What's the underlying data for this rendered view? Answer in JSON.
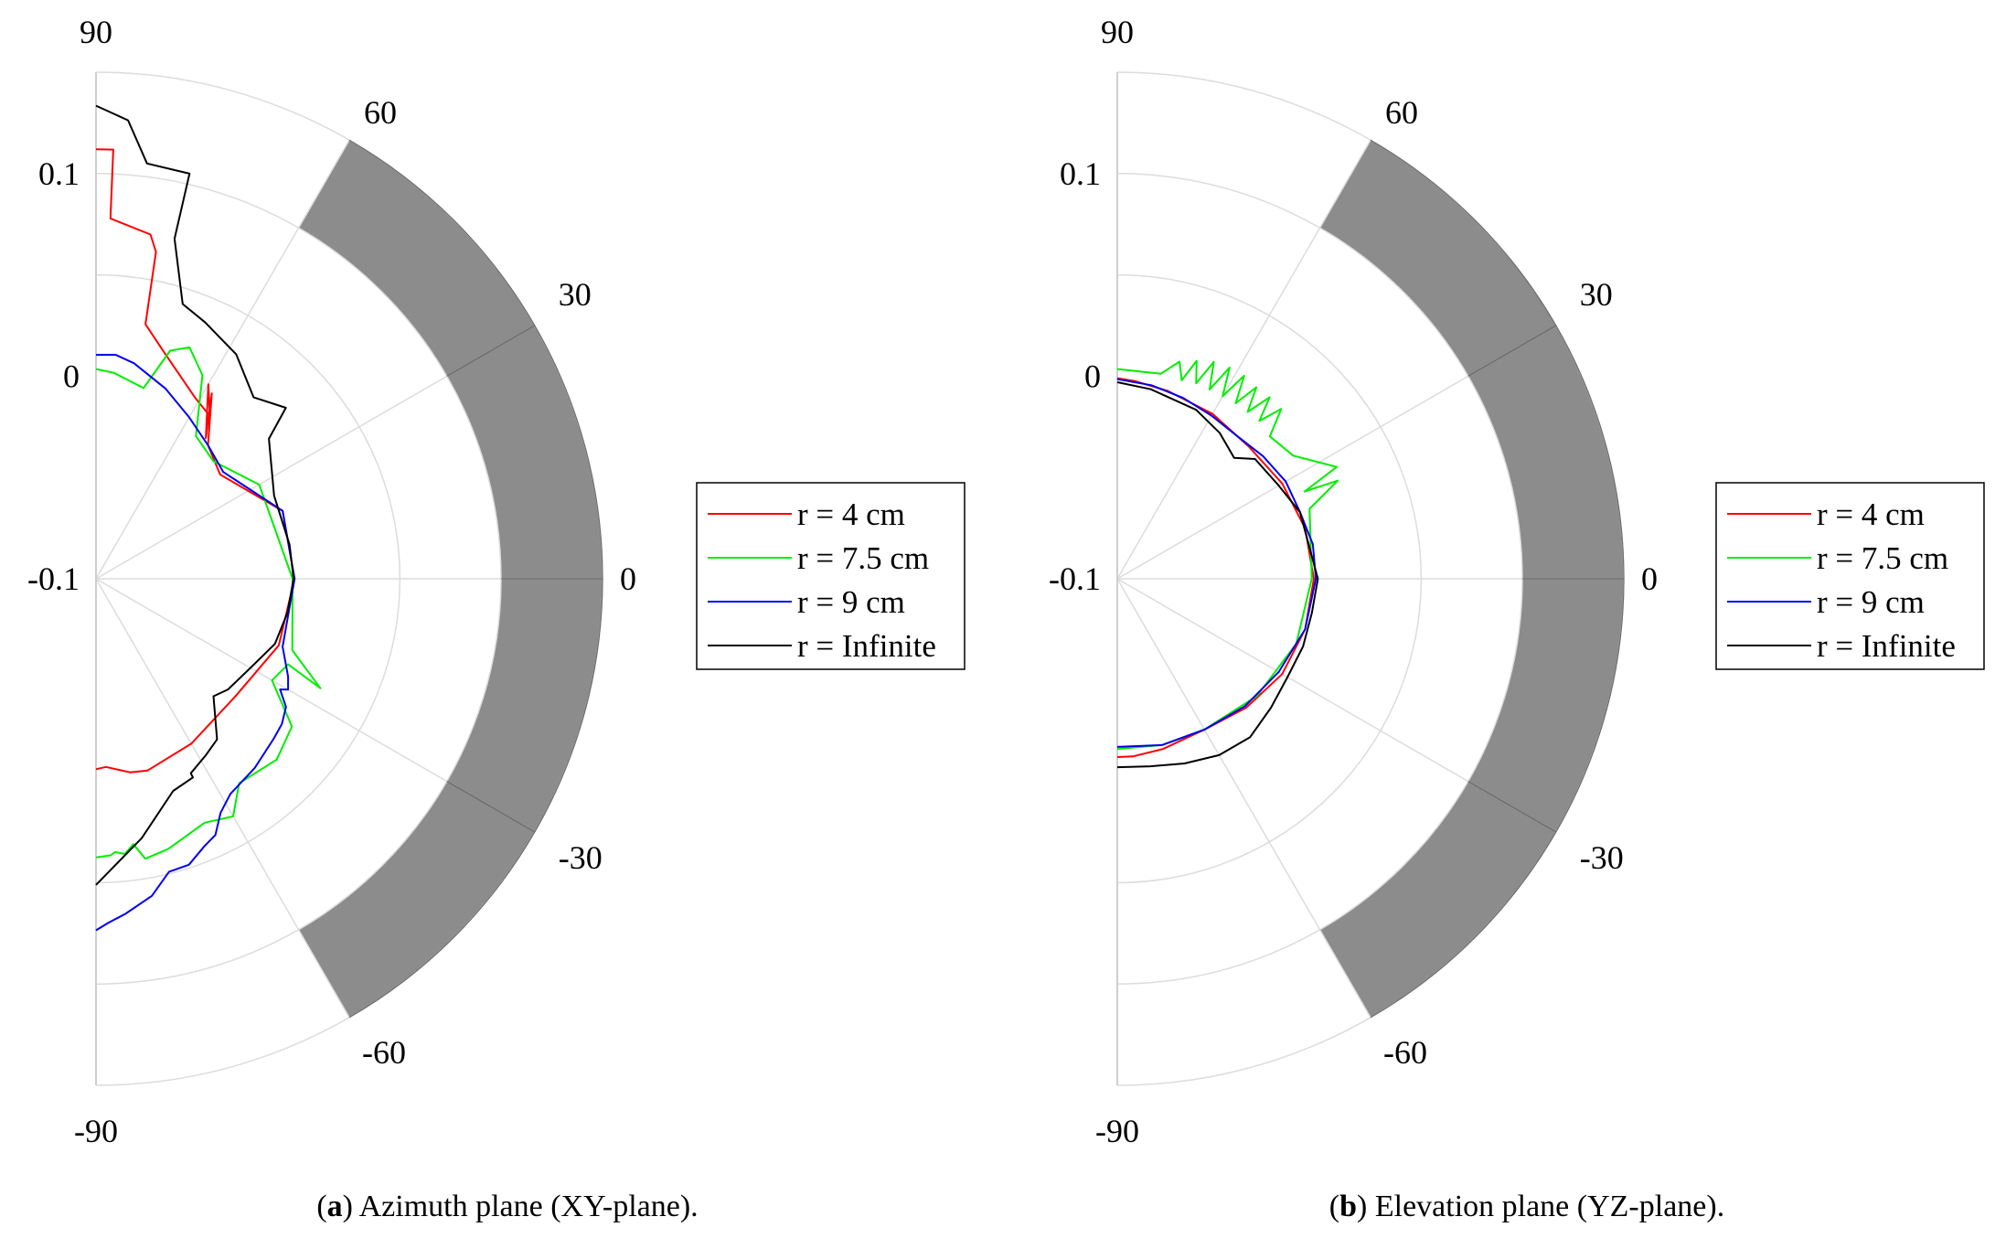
{
  "chart_data": [
    {
      "type": "polar-line",
      "caption_letter": "a",
      "caption_text": " Azimuth plane (XY-plane).",
      "theta_ticks": [
        "90",
        "60",
        "30",
        "0",
        "-30",
        "-60",
        "-90"
      ],
      "r_ticks": [
        "0.1",
        "0",
        "-0.1"
      ],
      "r_range": [
        -0.1,
        0.15
      ],
      "theta_range": [
        -90,
        90
      ],
      "grid": true,
      "shaded_band": {
        "theta": [
          -60,
          60
        ],
        "r": [
          0.1,
          0.15
        ],
        "color": "#8c8c8c"
      },
      "legend": {
        "placement": "right"
      },
      "series": [
        {
          "name": "r = 4 cm",
          "color": "#ff0000",
          "points": [
            [
              90,
              0.112
            ],
            [
              87.7,
              0.112
            ],
            [
              87.7,
              0.078
            ],
            [
              81,
              0.072
            ],
            [
              79.6,
              0.064
            ],
            [
              79,
              0.028
            ],
            [
              73.2,
              0.0166
            ],
            [
              61.3,
              0.0019
            ],
            [
              55,
              -0.002
            ],
            [
              60,
              0.0109
            ],
            [
              52,
              -0.012
            ],
            [
              58,
              0.0079
            ],
            [
              50,
              -0.014
            ],
            [
              40,
              -0.02
            ],
            [
              20,
              -0.002
            ],
            [
              0,
              -0.002
            ],
            [
              -20,
              -0.004
            ],
            [
              -40,
              -0.01
            ],
            [
              -60,
              -0.006
            ],
            [
              -75,
              -0.002
            ],
            [
              -80,
              -0.003
            ],
            [
              -87,
              -0.007
            ],
            [
              -90,
              -0.006
            ]
          ]
        },
        {
          "name": "r = 7.5 cm",
          "color": "#00ee00",
          "points": [
            [
              90,
              0.0035
            ],
            [
              85,
              0.002
            ],
            [
              76,
              -0.003
            ],
            [
              72,
              0.0184
            ],
            [
              68,
              0.0232
            ],
            [
              62.4,
              0.0134
            ],
            [
              55,
              -0.014
            ],
            [
              45,
              -0.018
            ],
            [
              30,
              -0.007
            ],
            [
              0,
              -0.003
            ],
            [
              -20,
              0.0031
            ],
            [
              -26,
              0.0232
            ],
            [
              -24,
              0.0038
            ],
            [
              -30,
              0.0003
            ],
            [
              -37,
              0.0211
            ],
            [
              -45,
              0.0262
            ],
            [
              -55,
              0.0232
            ],
            [
              -60,
              0.0354
            ],
            [
              -66,
              0.0318
            ],
            [
              -75,
              0.038
            ],
            [
              -80,
              0.0403
            ],
            [
              -82,
              0.0323
            ],
            [
              -84,
              0.0366
            ],
            [
              -86,
              0.0352
            ],
            [
              -87,
              0.0367
            ],
            [
              -90,
              0.0375
            ]
          ]
        },
        {
          "name": "r = 9 cm",
          "color": "#0000ee",
          "points": [
            [
              90,
              0.0105
            ],
            [
              85,
              0.011
            ],
            [
              80,
              0.008
            ],
            [
              70,
              0
            ],
            [
              60,
              -0.008
            ],
            [
              50,
              -0.014
            ],
            [
              40,
              -0.018
            ],
            [
              20,
              -0.002
            ],
            [
              0,
              -0.002
            ],
            [
              -20,
              -0.002
            ],
            [
              -27,
              0.0064
            ],
            [
              -30,
              0.0095
            ],
            [
              -31,
              0.006
            ],
            [
              -34,
              0.0131
            ],
            [
              -38,
              0.0164
            ],
            [
              -42,
              0.018
            ],
            [
              -50,
              0.0219
            ],
            [
              -58,
              0.0252
            ],
            [
              -62,
              0.0309
            ],
            [
              -65,
              0.0395
            ],
            [
              -68,
              0.0425
            ],
            [
              -72,
              0.0484
            ],
            [
              -76,
              0.049
            ],
            [
              -80,
              0.0589
            ],
            [
              -85,
              0.066
            ],
            [
              -88,
              0.07
            ],
            [
              -90,
              0.0735
            ]
          ]
        },
        {
          "name": "r = Infinite",
          "color": "#000000",
          "points": [
            [
              90,
              0.1335
            ],
            [
              86,
              0.1268
            ],
            [
              83,
              0.1065
            ],
            [
              77,
              0.1052
            ],
            [
              77,
              0.0723
            ],
            [
              72.5,
              0.0422
            ],
            [
              67,
              0.0376
            ],
            [
              58,
              0.0306
            ],
            [
              49,
              0.0186
            ],
            [
              42,
              0.0261
            ],
            [
              39,
              0.0098
            ],
            [
              25,
              -0.003
            ],
            [
              10,
              -0.003
            ],
            [
              0,
              -0.0025
            ],
            [
              -10,
              -0.004
            ],
            [
              -20,
              -0.006
            ],
            [
              -30,
              -0.012
            ],
            [
              -40,
              -0.015
            ],
            [
              -45,
              -0.018
            ],
            [
              -53,
              -0.0007
            ],
            [
              -58,
              0.0025
            ],
            [
              -64,
              0.0068
            ],
            [
              -64,
              0.0091
            ],
            [
              -70,
              0.0114
            ],
            [
              -80,
              0.03
            ],
            [
              -90,
              0.0511
            ]
          ]
        }
      ]
    },
    {
      "type": "polar-line",
      "caption_letter": "b",
      "caption_text": " Elevation plane (YZ-plane).",
      "theta_ticks": [
        "90",
        "60",
        "30",
        "0",
        "-30",
        "-60",
        "-90"
      ],
      "r_ticks": [
        "0.1",
        "0",
        "-0.1"
      ],
      "r_range": [
        -0.1,
        0.15
      ],
      "theta_range": [
        -90,
        90
      ],
      "grid": true,
      "shaded_band": {
        "theta": [
          -60,
          60
        ],
        "r": [
          0.1,
          0.15
        ],
        "color": "#8c8c8c"
      },
      "legend": {
        "placement": "right"
      },
      "series": [
        {
          "name": "r = 4 cm",
          "color": "#ff0000",
          "points": [
            [
              90,
              -0.001
            ],
            [
              85,
              -0.002
            ],
            [
              75,
              -0.004
            ],
            [
              60,
              -0.006
            ],
            [
              45,
              -0.008
            ],
            [
              30,
              -0.006
            ],
            [
              15,
              -0.004
            ],
            [
              0,
              -0.003
            ],
            [
              -15,
              -0.004
            ],
            [
              -30,
              -0.006
            ],
            [
              -45,
              -0.01
            ],
            [
              -60,
              -0.014
            ],
            [
              -75,
              -0.013
            ],
            [
              -85,
              -0.012
            ],
            [
              -90,
              -0.012
            ]
          ]
        },
        {
          "name": "r = 7.5 cm",
          "color": "#00ee00",
          "points": [
            [
              90,
              0.0035
            ],
            [
              78,
              0.0035
            ],
            [
              74,
              0.0115
            ],
            [
              72,
              0.003
            ],
            [
              70,
              0.0145
            ],
            [
              68,
              0.004
            ],
            [
              66,
              0.0172
            ],
            [
              64,
              0.004
            ],
            [
              62,
              0.018
            ],
            [
              60,
              0.004
            ],
            [
              58,
              0.0182
            ],
            [
              56,
              0.0045
            ],
            [
              54,
              0.0168
            ],
            [
              52,
              0.0045
            ],
            [
              50,
              0.017
            ],
            [
              48,
              0.0048
            ],
            [
              46,
              0.0165
            ],
            [
              43,
              0.003
            ],
            [
              35,
              0.006
            ],
            [
              27,
              0.0216
            ],
            [
              25,
              0.002
            ],
            [
              24,
              0.0191
            ],
            [
              20,
              0.001
            ],
            [
              0,
              -0.004
            ],
            [
              -20,
              -0.006
            ],
            [
              -40,
              -0.01
            ],
            [
              -60,
              -0.014
            ],
            [
              -75,
              -0.015
            ],
            [
              -90,
              -0.016
            ]
          ]
        },
        {
          "name": "r = 9 cm",
          "color": "#0000ee",
          "points": [
            [
              90,
              -0.0015
            ],
            [
              80,
              -0.003
            ],
            [
              70,
              -0.005
            ],
            [
              60,
              -0.007
            ],
            [
              50,
              -0.008
            ],
            [
              40,
              -0.006
            ],
            [
              30,
              -0.004
            ],
            [
              20,
              -0.004
            ],
            [
              10,
              -0.002
            ],
            [
              0,
              -0.002
            ],
            [
              -15,
              -0.004
            ],
            [
              -30,
              -0.008
            ],
            [
              -45,
              -0.011
            ],
            [
              -60,
              -0.014
            ],
            [
              -75,
              -0.015
            ],
            [
              -90,
              -0.017
            ]
          ]
        },
        {
          "name": "r = Infinite",
          "color": "#000000",
          "points": [
            [
              90,
              -0.003
            ],
            [
              80,
              -0.005
            ],
            [
              65,
              -0.008
            ],
            [
              55,
              -0.012
            ],
            [
              46,
              -0.017
            ],
            [
              41,
              -0.0099
            ],
            [
              30,
              -0.008
            ],
            [
              20,
              -0.004
            ],
            [
              0,
              -0.001
            ],
            [
              -10,
              -0.0025
            ],
            [
              -20,
              -0.0024
            ],
            [
              -30,
              -0.003
            ],
            [
              -40,
              -0.001
            ],
            [
              -50,
              0.002
            ],
            [
              -60,
              0.0005
            ],
            [
              -70,
              -0.003
            ],
            [
              -80,
              -0.006
            ],
            [
              -90,
              -0.007
            ]
          ]
        }
      ]
    }
  ]
}
